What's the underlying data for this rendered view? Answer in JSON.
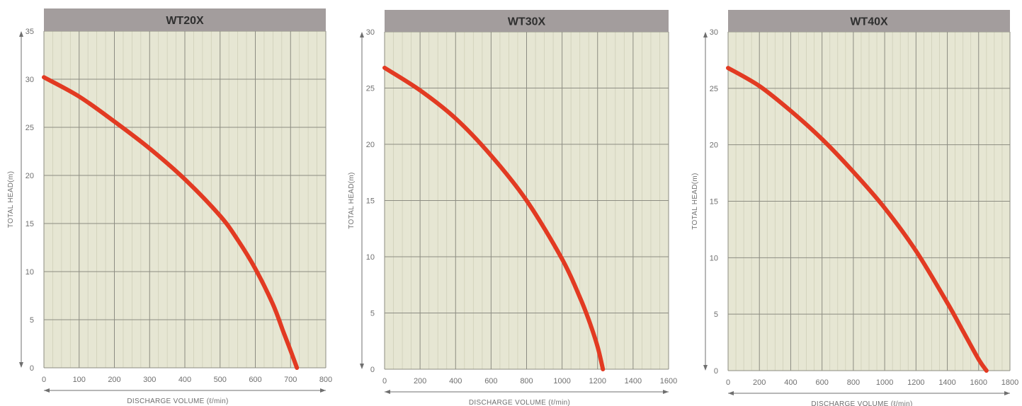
{
  "chart_data": [
    {
      "type": "line",
      "title": "WT20X",
      "xlabel": "DISCHARGE VOLUME (ℓ/min)",
      "ylabel": "TOTAL HEAD(m)",
      "xlim": [
        0,
        800
      ],
      "ylim": [
        0,
        35
      ],
      "xticks": [
        0,
        100,
        200,
        300,
        400,
        500,
        600,
        700,
        800
      ],
      "yticks": [
        0,
        5,
        10,
        15,
        20,
        25,
        30,
        35
      ],
      "grid": true,
      "series": [
        {
          "color": "#e23a22",
          "x": [
            0,
            100,
            200,
            300,
            400,
            500,
            550,
            600,
            650,
            680,
            700,
            718
          ],
          "y": [
            30.2,
            28.2,
            25.6,
            22.8,
            19.6,
            15.8,
            13.3,
            10.3,
            6.6,
            3.7,
            1.8,
            0
          ]
        }
      ]
    },
    {
      "type": "line",
      "title": "WT30X",
      "xlabel": "DISCHARGE VOLUME (ℓ/min)",
      "ylabel": "TOTAL HEAD(m)",
      "xlim": [
        0,
        1600
      ],
      "ylim": [
        0,
        30
      ],
      "xticks": [
        0,
        200,
        400,
        600,
        800,
        1000,
        1200,
        1400,
        1600
      ],
      "yticks": [
        0,
        5,
        10,
        15,
        20,
        25,
        30
      ],
      "grid": true,
      "series": [
        {
          "color": "#e23a22",
          "x": [
            0,
            200,
            400,
            600,
            800,
            1000,
            1100,
            1150,
            1200,
            1230
          ],
          "y": [
            26.8,
            24.8,
            22.3,
            19.0,
            15.0,
            9.8,
            6.4,
            4.4,
            2.0,
            0
          ]
        }
      ]
    },
    {
      "type": "line",
      "title": "WT40X",
      "xlabel": "DISCHARGE VOLUME (ℓ/min)",
      "ylabel": "TOTAL HEAD(m)",
      "xlim": [
        0,
        1800
      ],
      "ylim": [
        0,
        30
      ],
      "xticks": [
        0,
        200,
        400,
        600,
        800,
        1000,
        1200,
        1400,
        1600,
        1800
      ],
      "yticks": [
        0,
        5,
        10,
        15,
        20,
        25,
        30
      ],
      "grid": true,
      "series": [
        {
          "color": "#e23a22",
          "x": [
            0,
            200,
            400,
            600,
            800,
            1000,
            1200,
            1400,
            1500,
            1600,
            1650
          ],
          "y": [
            26.8,
            25.2,
            23.0,
            20.5,
            17.6,
            14.4,
            10.6,
            6.0,
            3.5,
            1.0,
            0
          ]
        }
      ]
    }
  ]
}
